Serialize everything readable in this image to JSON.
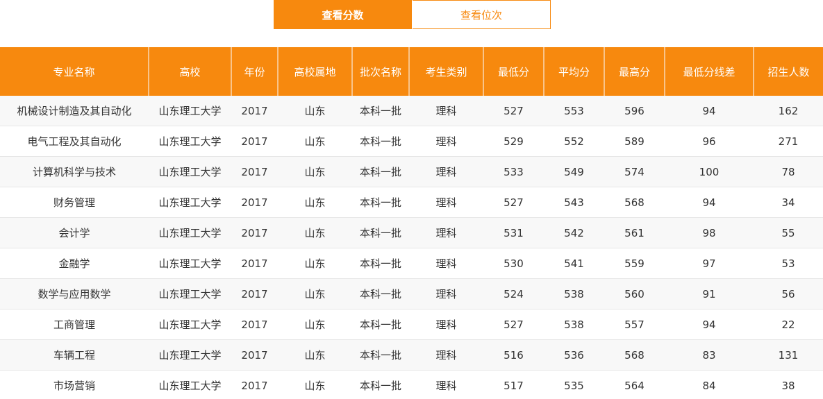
{
  "tabs": [
    "查看分数",
    "查看位次"
  ],
  "table": {
    "columns": [
      "专业名称",
      "高校",
      "年份",
      "高校属地",
      "批次名称",
      "考生类别",
      "最低分",
      "平均分",
      "最高分",
      "最低分线差",
      "招生人数"
    ],
    "rows": [
      [
        "机械设计制造及其自动化",
        "山东理工大学",
        2017,
        "山东",
        "本科一批",
        "理科",
        527,
        553,
        596,
        94,
        162
      ],
      [
        "电气工程及其自动化",
        "山东理工大学",
        2017,
        "山东",
        "本科一批",
        "理科",
        529,
        552,
        589,
        96,
        271
      ],
      [
        "计算机科学与技术",
        "山东理工大学",
        2017,
        "山东",
        "本科一批",
        "理科",
        533,
        549,
        574,
        100,
        78
      ],
      [
        "财务管理",
        "山东理工大学",
        2017,
        "山东",
        "本科一批",
        "理科",
        527,
        543,
        568,
        94,
        34
      ],
      [
        "会计学",
        "山东理工大学",
        2017,
        "山东",
        "本科一批",
        "理科",
        531,
        542,
        561,
        98,
        55
      ],
      [
        "金融学",
        "山东理工大学",
        2017,
        "山东",
        "本科一批",
        "理科",
        530,
        541,
        559,
        97,
        53
      ],
      [
        "数学与应用数学",
        "山东理工大学",
        2017,
        "山东",
        "本科一批",
        "理科",
        524,
        538,
        560,
        91,
        56
      ],
      [
        "工商管理",
        "山东理工大学",
        2017,
        "山东",
        "本科一批",
        "理科",
        527,
        538,
        557,
        94,
        22
      ],
      [
        "车辆工程",
        "山东理工大学",
        2017,
        "山东",
        "本科一批",
        "理科",
        516,
        536,
        568,
        83,
        131
      ],
      [
        "市场营销",
        "山东理工大学",
        2017,
        "山东",
        "本科一批",
        "理科",
        517,
        535,
        564,
        84,
        38
      ]
    ]
  }
}
